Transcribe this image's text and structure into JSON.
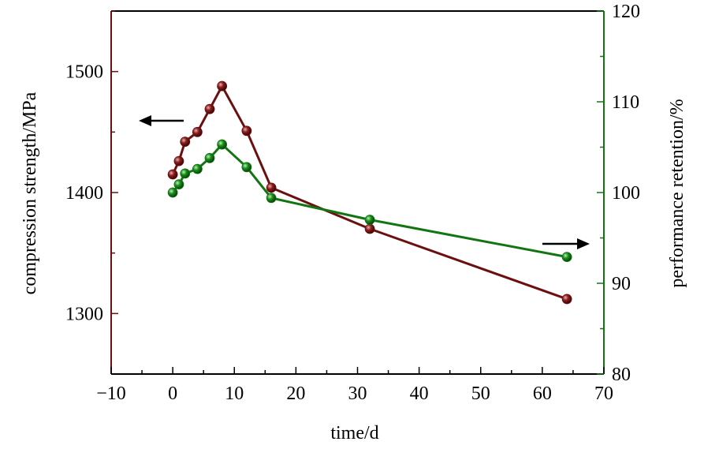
{
  "chart_data": {
    "type": "line",
    "title": "",
    "xlabel": "time/d",
    "ylabel_left": "compression strength/MPa",
    "ylabel_right": "performance retention/%",
    "xlim": [
      -10,
      70
    ],
    "ylim_left": [
      1250,
      1550
    ],
    "ylim_right": [
      80,
      120
    ],
    "x_ticks": [
      -10,
      0,
      10,
      20,
      30,
      40,
      50,
      60,
      70
    ],
    "x_tick_labels": [
      "−10",
      "0",
      "10",
      "20",
      "30",
      "40",
      "50",
      "60",
      "70"
    ],
    "y_left_ticks": [
      1300,
      1400,
      1500
    ],
    "y_left_tick_labels": [
      "1300",
      "1400",
      "1500"
    ],
    "y_right_ticks": [
      80,
      90,
      100,
      110,
      120
    ],
    "y_right_tick_labels": [
      "80",
      "90",
      "100",
      "110",
      "120"
    ],
    "grid": false,
    "series": [
      {
        "axis": "left",
        "color": "#6b0f0f",
        "marker": "circle",
        "x": [
          0,
          1,
          2,
          4,
          6,
          8,
          12,
          16,
          32,
          64
        ],
        "values": [
          1415,
          1426,
          1442,
          1450,
          1469,
          1488,
          1451,
          1404,
          1370,
          1312
        ]
      },
      {
        "axis": "right",
        "color": "#127512",
        "marker": "circle",
        "x": [
          0,
          1,
          2,
          4,
          6,
          8,
          12,
          16,
          32,
          64
        ],
        "values": [
          100,
          100.9,
          102.1,
          102.6,
          103.8,
          105.3,
          102.8,
          99.4,
          97.0,
          92.9
        ]
      }
    ],
    "annotations": [
      {
        "type": "arrow",
        "direction": "left",
        "meaning": "left-axis series"
      },
      {
        "type": "arrow",
        "direction": "right",
        "meaning": "right-axis series"
      }
    ],
    "colors": {
      "left_axis": "#6b0f0f",
      "right_axis": "#127512",
      "bottom_axis": "#000000"
    }
  }
}
